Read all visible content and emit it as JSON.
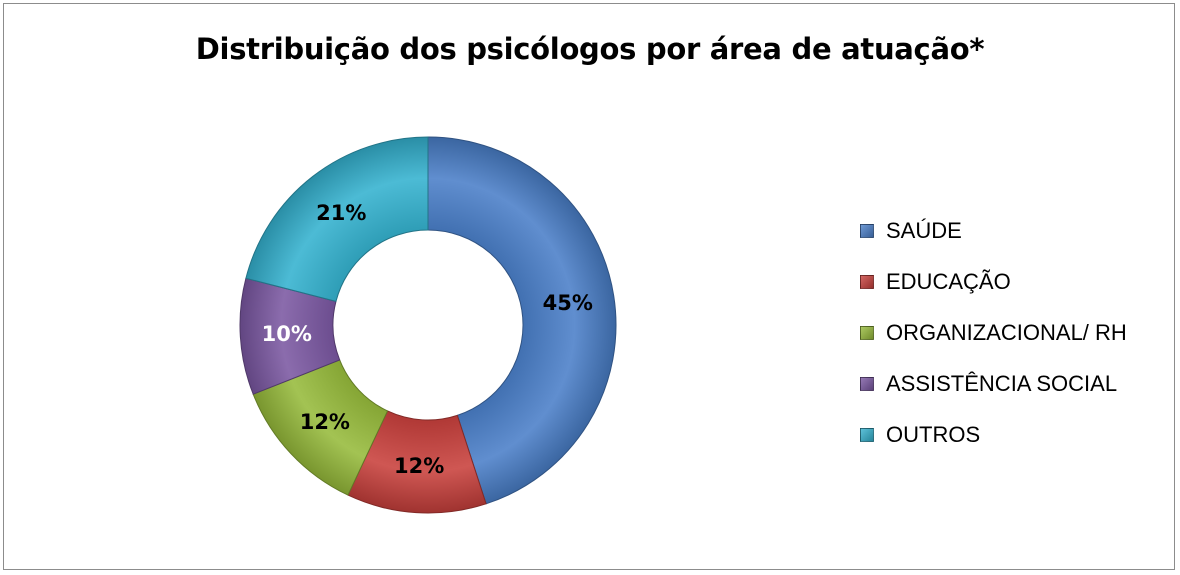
{
  "chart_data": {
    "type": "donut",
    "title": "Distribuição dos psicólogos por área de atuação*",
    "categories": [
      "SAÚDE",
      "EDUCAÇÃO",
      "ORGANIZACIONAL/ RH",
      "ASSISTÊNCIA SOCIAL",
      "OUTROS"
    ],
    "values": [
      45,
      12,
      12,
      10,
      21
    ],
    "data_labels": [
      "45%",
      "12%",
      "12%",
      "10%",
      "21%"
    ],
    "colors": [
      "#4a7fc9",
      "#c8403c",
      "#97bb3b",
      "#7b58a2",
      "#34b2cf"
    ],
    "label_colors": [
      "#000000",
      "#000000",
      "#000000",
      "#ffffff",
      "#000000"
    ],
    "legend_position": "right"
  }
}
